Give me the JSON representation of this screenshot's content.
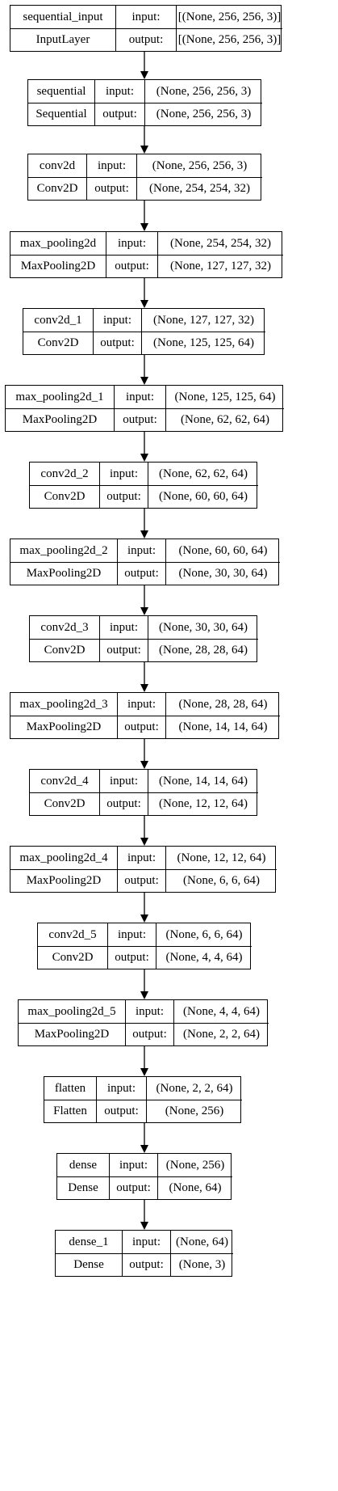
{
  "layers": [
    {
      "name": "sequential_input",
      "type": "InputLayer",
      "input_label": "input:",
      "output_label": "output:",
      "input_shape": "[(None, 256, 256, 3)]",
      "output_shape": "[(None, 256, 256, 3)]"
    },
    {
      "name": "sequential",
      "type": "Sequential",
      "input_label": "input:",
      "output_label": "output:",
      "input_shape": "(None, 256, 256, 3)",
      "output_shape": "(None, 256, 256, 3)"
    },
    {
      "name": "conv2d",
      "type": "Conv2D",
      "input_label": "input:",
      "output_label": "output:",
      "input_shape": "(None, 256, 256, 3)",
      "output_shape": "(None, 254, 254, 32)"
    },
    {
      "name": "max_pooling2d",
      "type": "MaxPooling2D",
      "input_label": "input:",
      "output_label": "output:",
      "input_shape": "(None, 254, 254, 32)",
      "output_shape": "(None, 127, 127, 32)"
    },
    {
      "name": "conv2d_1",
      "type": "Conv2D",
      "input_label": "input:",
      "output_label": "output:",
      "input_shape": "(None, 127, 127, 32)",
      "output_shape": "(None, 125, 125, 64)"
    },
    {
      "name": "max_pooling2d_1",
      "type": "MaxPooling2D",
      "input_label": "input:",
      "output_label": "output:",
      "input_shape": "(None, 125, 125, 64)",
      "output_shape": "(None, 62, 62, 64)"
    },
    {
      "name": "conv2d_2",
      "type": "Conv2D",
      "input_label": "input:",
      "output_label": "output:",
      "input_shape": "(None, 62, 62, 64)",
      "output_shape": "(None, 60, 60, 64)"
    },
    {
      "name": "max_pooling2d_2",
      "type": "MaxPooling2D",
      "input_label": "input:",
      "output_label": "output:",
      "input_shape": "(None, 60, 60, 64)",
      "output_shape": "(None, 30, 30, 64)"
    },
    {
      "name": "conv2d_3",
      "type": "Conv2D",
      "input_label": "input:",
      "output_label": "output:",
      "input_shape": "(None, 30, 30, 64)",
      "output_shape": "(None, 28, 28, 64)"
    },
    {
      "name": "max_pooling2d_3",
      "type": "MaxPooling2D",
      "input_label": "input:",
      "output_label": "output:",
      "input_shape": "(None, 28, 28, 64)",
      "output_shape": "(None, 14, 14, 64)"
    },
    {
      "name": "conv2d_4",
      "type": "Conv2D",
      "input_label": "input:",
      "output_label": "output:",
      "input_shape": "(None, 14, 14, 64)",
      "output_shape": "(None, 12, 12, 64)"
    },
    {
      "name": "max_pooling2d_4",
      "type": "MaxPooling2D",
      "input_label": "input:",
      "output_label": "output:",
      "input_shape": "(None, 12, 12, 64)",
      "output_shape": "(None, 6, 6, 64)"
    },
    {
      "name": "conv2d_5",
      "type": "Conv2D",
      "input_label": "input:",
      "output_label": "output:",
      "input_shape": "(None, 6, 6, 64)",
      "output_shape": "(None, 4, 4, 64)"
    },
    {
      "name": "max_pooling2d_5",
      "type": "MaxPooling2D",
      "input_label": "input:",
      "output_label": "output:",
      "input_shape": "(None, 4, 4, 64)",
      "output_shape": "(None, 2, 2, 64)"
    },
    {
      "name": "flatten",
      "type": "Flatten",
      "input_label": "input:",
      "output_label": "output:",
      "input_shape": "(None, 2, 2, 64)",
      "output_shape": "(None, 256)"
    },
    {
      "name": "dense",
      "type": "Dense",
      "input_label": "input:",
      "output_label": "output:",
      "input_shape": "(None, 256)",
      "output_shape": "(None, 64)"
    },
    {
      "name": "dense_1",
      "type": "Dense",
      "input_label": "input:",
      "output_label": "output:",
      "input_shape": "(None, 64)",
      "output_shape": "(None, 3)"
    }
  ]
}
